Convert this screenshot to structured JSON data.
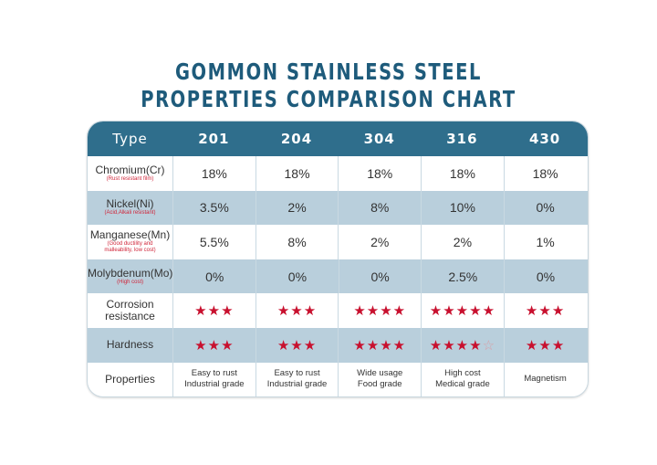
{
  "title_line1": "GOMMON STAINLESS STEEL",
  "title_line2": "PROPERTIES COMPARISON CHART",
  "chart_data": {
    "type": "table",
    "title": "GOMMON STAINLESS STEEL PROPERTIES COMPARISON CHART",
    "header": [
      "Type",
      "201",
      "204",
      "304",
      "316",
      "430"
    ],
    "colors": {
      "header_bg": "#2f6e8c",
      "alt_row_bg": "#b9cfdc",
      "title": "#1e5b7b",
      "star": "#c8102e",
      "note": "#d0263a"
    },
    "rows": [
      {
        "label": "Chromium(Cr)",
        "note": "(Rust resistant film)",
        "kind": "text",
        "values": [
          "18%",
          "18%",
          "18%",
          "18%",
          "18%"
        ]
      },
      {
        "label": "Nickel(Ni)",
        "note": "(Acid,Alkali resistant)",
        "kind": "text",
        "values": [
          "3.5%",
          "2%",
          "8%",
          "10%",
          "0%"
        ]
      },
      {
        "label": "Manganese(Mn)",
        "note": "(Good ductility and malleability, low cost)",
        "kind": "text",
        "values": [
          "5.5%",
          "8%",
          "2%",
          "2%",
          "1%"
        ]
      },
      {
        "label": "Molybdenum(Mo)",
        "note": "(High cost)",
        "kind": "text",
        "values": [
          "0%",
          "0%",
          "0%",
          "2.5%",
          "0%"
        ]
      },
      {
        "label": "Corrosion resistance",
        "note": "",
        "kind": "stars",
        "values": [
          3,
          3,
          4,
          5,
          3
        ],
        "max": [
          3,
          3,
          4,
          5,
          3
        ]
      },
      {
        "label": "Hardness",
        "note": "",
        "kind": "stars",
        "values": [
          3,
          3,
          4,
          4,
          3
        ],
        "max": [
          3,
          3,
          4,
          5,
          3
        ]
      },
      {
        "label": "Properties",
        "note": "",
        "kind": "small",
        "values": [
          "Easy to rust\nIndustrial grade",
          "Easy to rust\nIndustrial grade",
          "Wide usage\nFood grade",
          "High cost\nMedical grade",
          "Magnetism"
        ]
      }
    ]
  }
}
